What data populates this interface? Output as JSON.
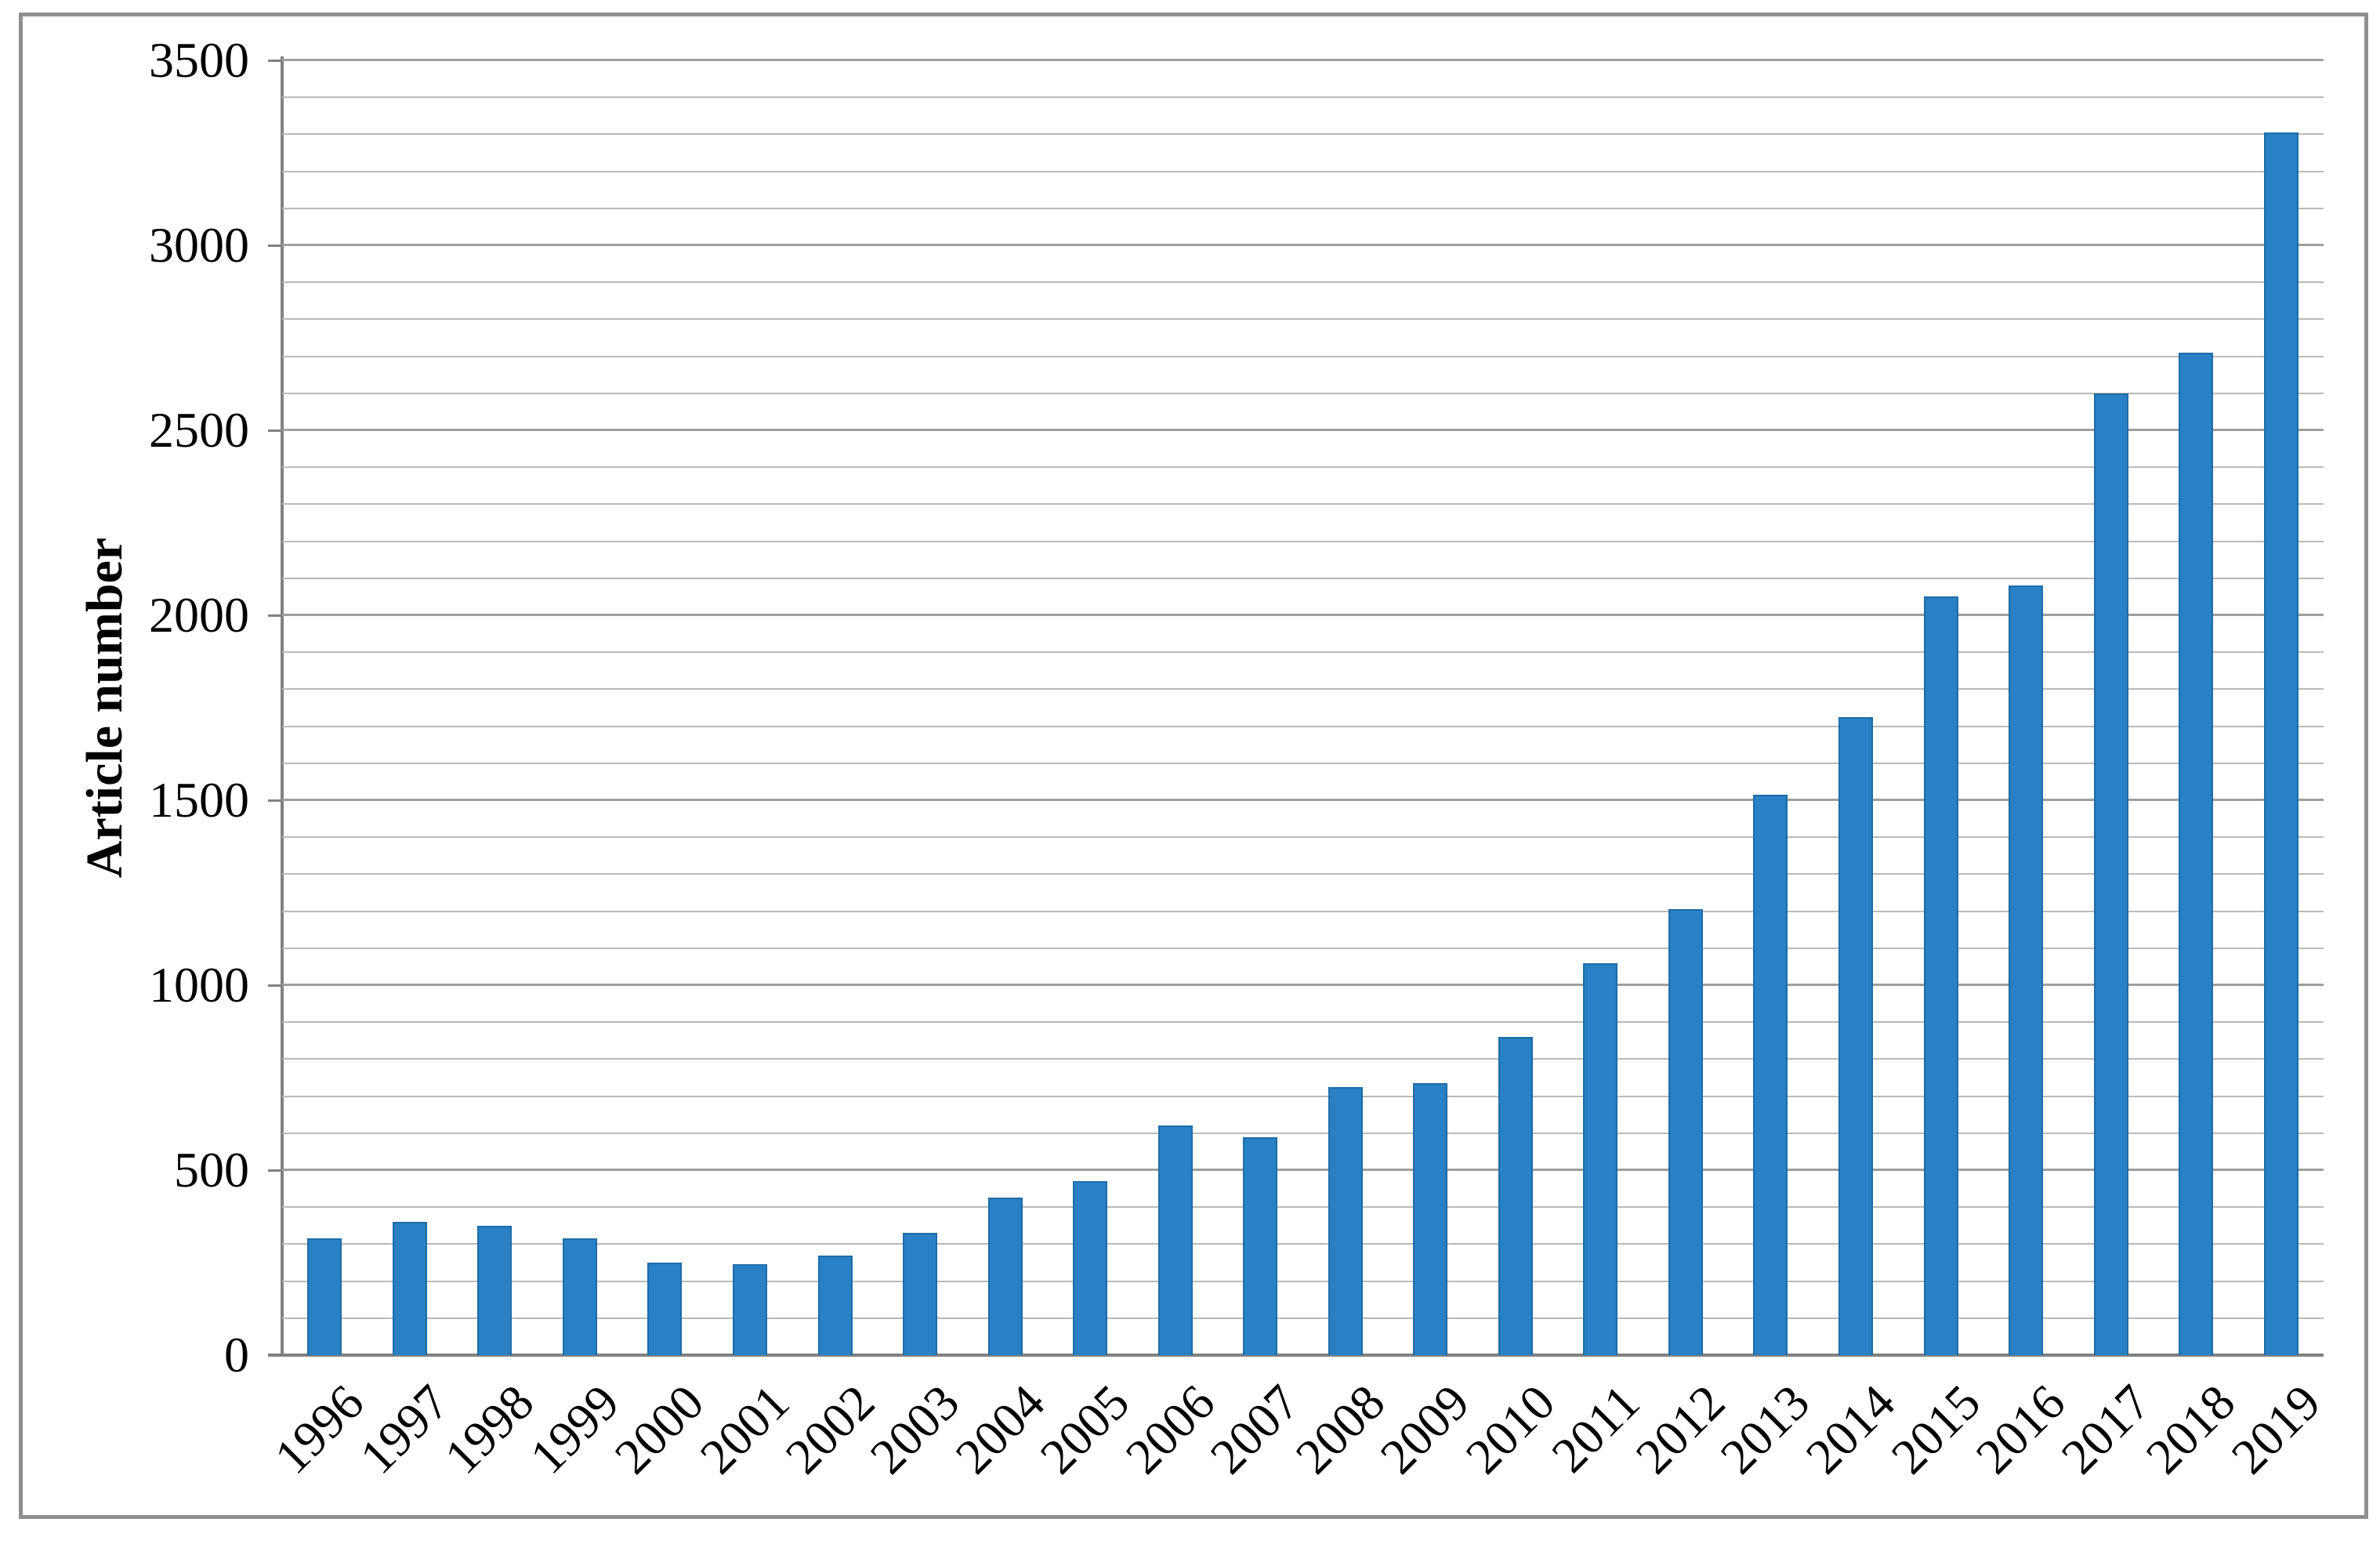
{
  "chart_data": {
    "type": "bar",
    "title": "",
    "ylabel": "Article number",
    "xlabel": "",
    "categories": [
      "1996",
      "1997",
      "1998",
      "1999",
      "2000",
      "2001",
      "2002",
      "2003",
      "2004",
      "2005",
      "2006",
      "2007",
      "2008",
      "2009",
      "2010",
      "2011",
      "2012",
      "2013",
      "2014",
      "2015",
      "2016",
      "2017",
      "2018",
      "2019"
    ],
    "values": [
      315,
      360,
      350,
      315,
      250,
      245,
      270,
      330,
      425,
      470,
      620,
      590,
      725,
      735,
      860,
      1060,
      1205,
      1515,
      1725,
      2050,
      2080,
      2600,
      2710,
      3305
    ],
    "ylim": [
      0,
      3500
    ],
    "ytick_step": 500,
    "minor_gridline_step": 100,
    "yticks": [
      0,
      500,
      1000,
      1500,
      2000,
      2500,
      3000,
      3500
    ],
    "grid": "horizontal",
    "legend": "none",
    "x_label_rotation_deg": 45
  },
  "colors": {
    "bar_fill": "#2A80C4",
    "bar_border": "#1E6CA8",
    "gridline_minor": "#B9B9B9",
    "gridline_major": "#9E9E9E",
    "axis": "#808080",
    "frame_border": "#8F8F8F",
    "text": "#000000",
    "background": "#FFFFFF"
  }
}
